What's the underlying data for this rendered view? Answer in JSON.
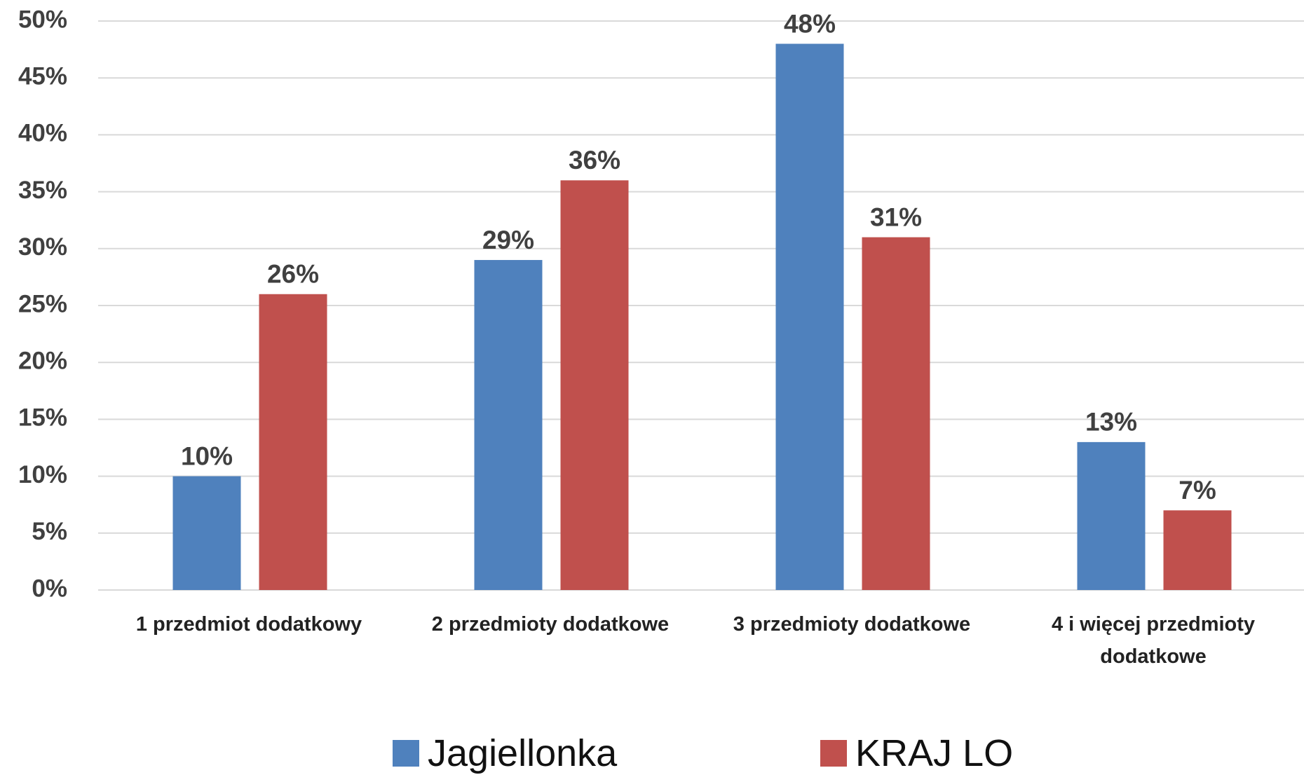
{
  "chart_data": {
    "type": "bar",
    "categories": [
      "1 przedmiot dodatkowy",
      "2 przedmioty dodatkowe",
      "3 przedmioty dodatkowe",
      "4 i więcej przedmioty dodatkowe"
    ],
    "series": [
      {
        "name": "Jagiellonka",
        "color": "#4f81bd",
        "values": [
          10,
          29,
          48,
          13
        ],
        "value_labels": [
          "10%",
          "29%",
          "48%",
          "13%"
        ]
      },
      {
        "name": "KRAJ LO",
        "color": "#c0504d",
        "values": [
          26,
          36,
          31,
          7
        ],
        "value_labels": [
          "26%",
          "36%",
          "31%",
          "7%"
        ]
      }
    ],
    "ylim": [
      0,
      50
    ],
    "yticks": [
      {
        "value": 0,
        "label": "0%"
      },
      {
        "value": 5,
        "label": "5%"
      },
      {
        "value": 10,
        "label": "10%"
      },
      {
        "value": 15,
        "label": "15%"
      },
      {
        "value": 20,
        "label": "20%"
      },
      {
        "value": 25,
        "label": "25%"
      },
      {
        "value": 30,
        "label": "30%"
      },
      {
        "value": 35,
        "label": "35%"
      },
      {
        "value": 40,
        "label": "40%"
      },
      {
        "value": 45,
        "label": "45%"
      },
      {
        "value": 50,
        "label": "50%"
      }
    ],
    "grid": true,
    "legend": "bottom"
  }
}
